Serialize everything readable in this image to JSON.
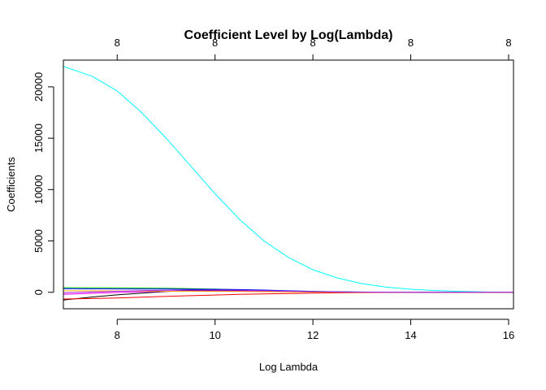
{
  "chart_data": {
    "type": "line",
    "title": "Coefficient Level by Log(Lambda)",
    "xlabel": "Log Lambda",
    "ylabel": "Coefficients",
    "xlim": [
      6.9,
      16.1
    ],
    "ylim": [
      -1600,
      22600
    ],
    "x_ticks": [
      8,
      10,
      12,
      14,
      16
    ],
    "x_tick_labels": [
      "8",
      "10",
      "12",
      "14",
      "16"
    ],
    "y_ticks": [
      0,
      5000,
      10000,
      15000,
      20000
    ],
    "y_tick_labels": [
      "0",
      "5000",
      "10000",
      "15000",
      "20000"
    ],
    "top_axis": {
      "ticks": [
        8,
        10,
        12,
        14,
        16
      ],
      "labels": [
        "8",
        "8",
        "8",
        "8",
        "8"
      ]
    },
    "grid": false,
    "x": [
      6.9,
      7.5,
      8.0,
      8.5,
      9.0,
      9.5,
      10.0,
      10.5,
      11.0,
      11.5,
      12.0,
      12.5,
      13.0,
      13.5,
      14.0,
      14.5,
      15.0,
      15.5,
      16.1
    ],
    "series": [
      {
        "color": "#00ffff",
        "values": [
          22000,
          21000,
          19600,
          17500,
          15000,
          12300,
          9600,
          7100,
          5000,
          3400,
          2200,
          1400,
          850,
          500,
          300,
          170,
          90,
          40,
          0
        ]
      },
      {
        "color": "#000000",
        "values": [
          -750,
          -450,
          -250,
          -80,
          80,
          160,
          180,
          160,
          120,
          80,
          40,
          20,
          10,
          5,
          2,
          1,
          0,
          0,
          0
        ]
      },
      {
        "color": "#ff0000",
        "values": [
          -650,
          -600,
          -550,
          -480,
          -400,
          -330,
          -260,
          -200,
          -150,
          -110,
          -80,
          -50,
          -30,
          -20,
          -10,
          -5,
          -2,
          -1,
          0
        ]
      },
      {
        "color": "#00cd00",
        "values": [
          450,
          450,
          440,
          420,
          400,
          360,
          310,
          250,
          190,
          130,
          80,
          50,
          30,
          15,
          8,
          4,
          2,
          1,
          0
        ]
      },
      {
        "color": "#0000ff",
        "values": [
          350,
          340,
          330,
          320,
          310,
          300,
          290,
          270,
          220,
          150,
          90,
          50,
          25,
          12,
          6,
          3,
          1,
          0,
          0
        ]
      },
      {
        "color": "#ff00ff",
        "values": [
          -200,
          -100,
          -20,
          50,
          100,
          120,
          120,
          110,
          90,
          60,
          35,
          20,
          10,
          5,
          2,
          1,
          0,
          0,
          0
        ]
      },
      {
        "color": "#ffa500",
        "values": [
          150,
          140,
          130,
          120,
          110,
          100,
          90,
          75,
          60,
          40,
          25,
          15,
          8,
          4,
          2,
          1,
          0,
          0,
          0
        ]
      },
      {
        "color": "#a020f0",
        "values": [
          -50,
          30,
          100,
          160,
          200,
          220,
          220,
          200,
          160,
          110,
          70,
          40,
          20,
          10,
          5,
          2,
          1,
          0,
          0
        ]
      }
    ]
  }
}
